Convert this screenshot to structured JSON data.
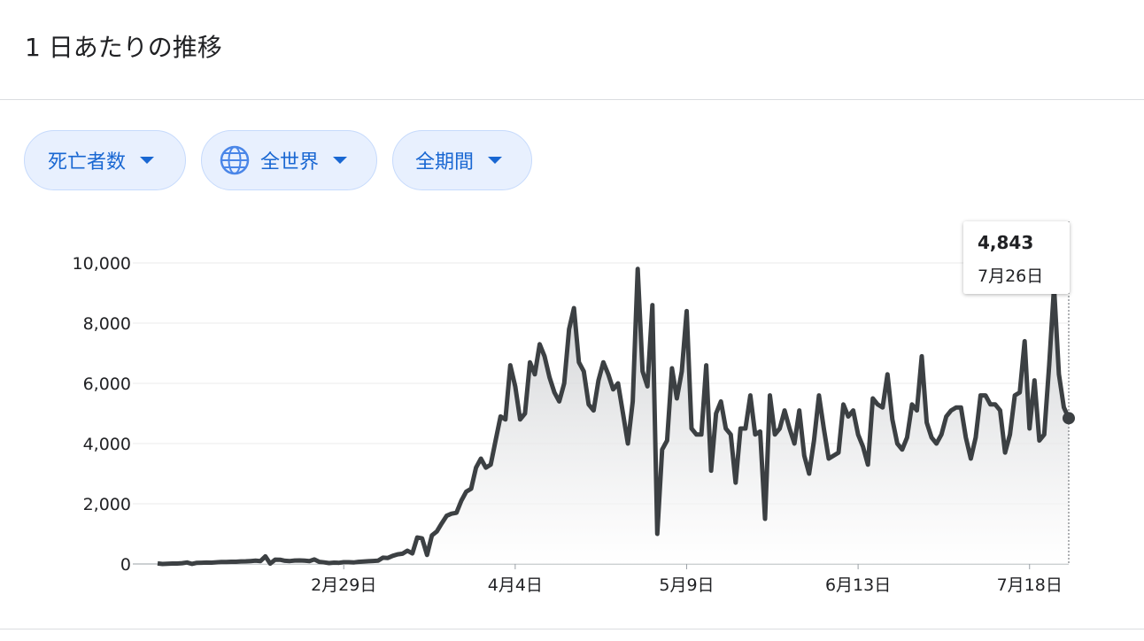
{
  "header": {
    "title": "1 日あたりの推移"
  },
  "filters": [
    "死亡者数",
    "全世界",
    "全期間"
  ],
  "chart_data": {
    "type": "area",
    "categories": [
      null,
      null,
      null,
      null,
      null,
      null,
      null,
      null,
      null,
      null,
      null,
      null,
      null,
      null,
      null,
      null,
      null,
      null,
      null,
      null,
      null,
      null,
      null,
      null,
      null,
      null,
      null,
      null,
      null,
      null,
      null,
      null,
      null,
      null,
      null,
      null,
      null,
      null,
      "2月29日",
      null,
      null,
      null,
      null,
      null,
      null,
      null,
      null,
      null,
      null,
      null,
      null,
      null,
      null,
      null,
      null,
      null,
      null,
      null,
      null,
      null,
      null,
      null,
      null,
      null,
      null,
      null,
      null,
      null,
      null,
      null,
      null,
      null,
      null,
      "4月4日",
      null,
      null,
      null,
      null,
      null,
      null,
      null,
      null,
      null,
      null,
      null,
      null,
      null,
      null,
      null,
      null,
      null,
      null,
      null,
      null,
      null,
      null,
      null,
      null,
      null,
      null,
      null,
      null,
      null,
      null,
      null,
      null,
      null,
      null,
      "5月9日",
      null,
      null,
      null,
      null,
      null,
      null,
      null,
      null,
      null,
      null,
      null,
      null,
      null,
      null,
      null,
      null,
      null,
      null,
      null,
      null,
      null,
      null,
      null,
      null,
      null,
      null,
      null,
      null,
      null,
      null,
      null,
      null,
      null,
      null,
      "6月13日",
      null,
      null,
      null,
      null,
      null,
      null,
      null,
      null,
      null,
      null,
      null,
      null,
      null,
      null,
      null,
      null,
      null,
      null,
      null,
      null,
      null,
      null,
      null,
      null,
      null,
      null,
      null,
      null,
      null,
      null,
      null,
      null,
      null,
      null,
      "7月18日",
      null,
      null,
      null,
      null,
      null,
      null,
      null,
      "7月26日"
    ],
    "values": [
      17,
      0,
      8,
      16,
      14,
      26,
      49,
      2,
      38,
      42,
      46,
      45,
      57,
      64,
      66,
      73,
      73,
      86,
      89,
      97,
      108,
      97,
      254,
      13,
      143,
      142,
      106,
      98,
      115,
      118,
      109,
      97,
      150,
      71,
      52,
      29,
      44,
      37,
      60,
      60,
      50,
      70,
      80,
      90,
      100,
      110,
      210,
      200,
      270,
      320,
      340,
      440,
      350,
      880,
      850,
      300,
      950,
      1080,
      1350,
      1600,
      1670,
      1700,
      2100,
      2400,
      2500,
      3200,
      3500,
      3200,
      3300,
      4100,
      4900,
      4800,
      6600,
      5900,
      4800,
      5000,
      6700,
      6300,
      7300,
      6900,
      6200,
      5700,
      5400,
      6000,
      7800,
      8500,
      6700,
      6400,
      5300,
      5100,
      6100,
      6700,
      6300,
      5800,
      6000,
      5000,
      4000,
      5400,
      9800,
      6400,
      5900,
      8600,
      1000,
      3800,
      4100,
      6500,
      5500,
      6400,
      8400,
      4500,
      4300,
      4300,
      6600,
      3100,
      5000,
      5400,
      4500,
      4300,
      2700,
      4500,
      4500,
      5600,
      4300,
      4400,
      1500,
      5600,
      4300,
      4500,
      5100,
      4500,
      4000,
      5100,
      3600,
      3000,
      4100,
      5600,
      4500,
      3500,
      3600,
      3700,
      5300,
      4900,
      5100,
      4300,
      3900,
      3300,
      5500,
      5300,
      5200,
      6300,
      4800,
      4000,
      3800,
      4200,
      5300,
      5100,
      6900,
      4700,
      4200,
      4000,
      4300,
      4900,
      5100,
      5200,
      5200,
      4200,
      3500,
      4200,
      5600,
      5600,
      5300,
      5300,
      5100,
      3700,
      4300,
      5600,
      5700,
      7400,
      4500,
      6100,
      4100,
      4300,
      6600,
      9200,
      6300,
      5200,
      4843
    ],
    "value_labels": [
      null,
      null,
      null,
      null,
      null,
      null,
      null,
      null,
      null,
      null,
      null,
      null,
      null,
      null,
      null,
      null,
      null,
      null,
      null,
      null,
      null,
      null,
      null,
      null,
      null,
      null,
      null,
      null,
      null,
      null,
      null,
      null,
      null,
      null,
      null,
      null,
      null,
      null,
      null,
      null,
      null,
      null,
      null,
      null,
      null,
      null,
      null,
      null,
      null,
      null,
      null,
      null,
      null,
      null,
      null,
      null,
      null,
      null,
      null,
      null,
      null,
      null,
      null,
      null,
      null,
      null,
      null,
      null,
      null,
      null,
      null,
      null,
      null,
      null,
      null,
      null,
      null,
      null,
      null,
      null,
      null,
      null,
      null,
      null,
      null,
      null,
      null,
      null,
      null,
      null,
      null,
      null,
      null,
      null,
      null,
      null,
      null,
      null,
      null,
      null,
      null,
      null,
      null,
      null,
      null,
      null,
      null,
      null,
      null,
      null,
      null,
      null,
      null,
      null,
      null,
      null,
      null,
      null,
      null,
      null,
      null,
      null,
      null,
      null,
      null,
      null,
      null,
      null,
      null,
      null,
      null,
      null,
      null,
      null,
      null,
      null,
      null,
      null,
      null,
      null,
      null,
      null,
      null,
      null,
      null,
      null,
      null,
      null,
      null,
      null,
      null,
      null,
      null,
      null,
      null,
      null,
      null,
      null,
      null,
      null,
      null,
      null,
      null,
      null,
      null,
      null,
      null,
      null,
      null,
      null,
      null,
      null,
      null,
      null,
      null,
      null,
      null,
      null,
      null,
      null,
      null,
      null,
      null,
      null,
      null,
      null,
      "4,843"
    ],
    "color": "#3c4043",
    "ylim": [
      0,
      10000
    ],
    "yticks": [
      0,
      {
        "value": 2000,
        "label": "2,000"
      },
      {
        "value": 4000,
        "label": "4,000"
      },
      {
        "value": 6000,
        "label": "6,000"
      },
      {
        "value": 8000,
        "label": "8,000"
      },
      {
        "value": 10000,
        "label": "10,000"
      }
    ],
    "grid": true
  }
}
